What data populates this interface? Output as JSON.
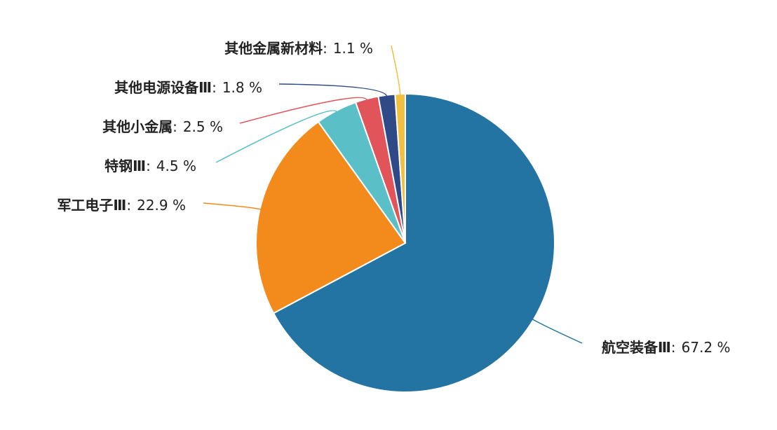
{
  "chart_data": {
    "type": "pie",
    "categories": [
      "航空装备Ⅲ",
      "军工电子Ⅲ",
      "特钢Ⅲ",
      "其他小金属",
      "其他电源设备Ⅲ",
      "其他金属新材料"
    ],
    "values": [
      67.2,
      22.9,
      4.5,
      2.5,
      1.8,
      1.1
    ],
    "value_labels": [
      "67.2 %",
      "22.9 %",
      "4.5 %",
      "2.5 %",
      "1.8 %",
      "1.1 %"
    ],
    "label_separator": ":",
    "colors": [
      "#2373a3",
      "#f28a1c",
      "#5bbfc8",
      "#e0545a",
      "#2f4a86",
      "#f1bf42"
    ]
  }
}
